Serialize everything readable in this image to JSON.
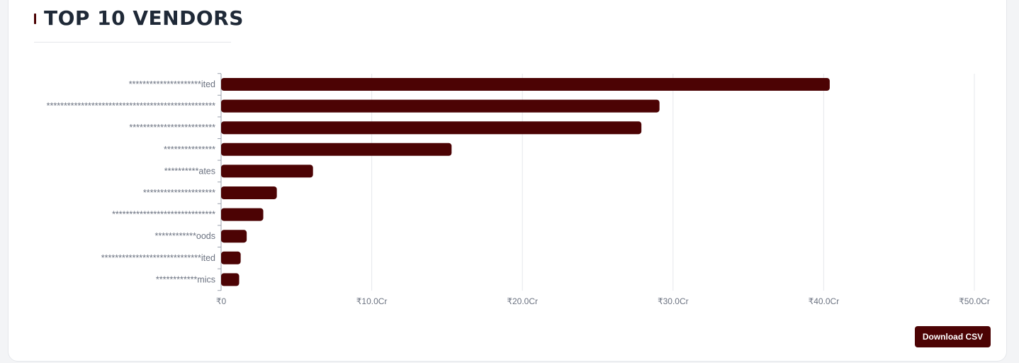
{
  "header": {
    "title": "TOP 10 VENDORS"
  },
  "actions": {
    "download_label": "Download CSV"
  },
  "colors": {
    "bar": "#4c0304",
    "accent": "#4c0304",
    "grid": "#e5e7eb",
    "axis_text": "#6b7280"
  },
  "chart_data": {
    "type": "bar",
    "orientation": "horizontal",
    "title": "TOP 10 VENDORS",
    "xlabel": "",
    "ylabel": "",
    "categories": [
      "*********************ited",
      "*************************************************",
      "*************************",
      "***************",
      "**********ates",
      "*********************",
      "******************************",
      "************oods",
      "*****************************ited",
      "************mics"
    ],
    "values": [
      40.4,
      29.1,
      27.9,
      15.3,
      6.1,
      3.7,
      2.8,
      1.7,
      1.3,
      1.2
    ],
    "value_unit": "Cr",
    "xlim": [
      0,
      50
    ],
    "xticks": [
      0,
      10,
      20,
      30,
      40,
      50
    ],
    "xtick_labels": [
      "₹0",
      "₹10.0Cr",
      "₹20.0Cr",
      "₹30.0Cr",
      "₹40.0Cr",
      "₹50.0Cr"
    ],
    "grid": true,
    "legend": "none"
  }
}
